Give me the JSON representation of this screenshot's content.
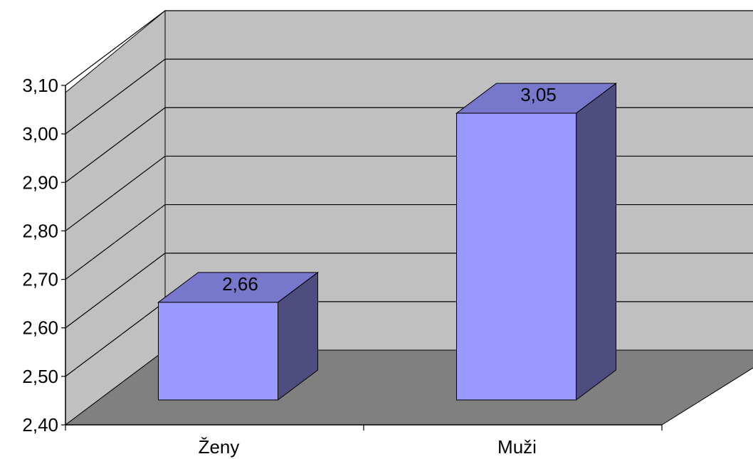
{
  "chart_data": {
    "type": "bar",
    "categories": [
      "Ženy",
      "Muži"
    ],
    "values": [
      2.66,
      3.05
    ],
    "data_labels": [
      "2,66",
      "3,05"
    ],
    "ylim": [
      2.4,
      3.1
    ],
    "yticks": [
      2.4,
      2.5,
      2.6,
      2.7,
      2.8,
      2.9,
      3.0,
      3.1
    ],
    "ytick_labels": [
      "2,40",
      "2,50",
      "2,60",
      "2,70",
      "2,80",
      "2,90",
      "3,00",
      "3,10"
    ],
    "title": "",
    "xlabel": "",
    "ylabel": "",
    "grid": true,
    "three_d": true,
    "colors": {
      "bar_front": "#9999FF",
      "bar_top": "#7777CC",
      "bar_side": "#4D4D80",
      "wall": "#C0C0C0",
      "floor": "#808080",
      "gridline": "#000000"
    }
  }
}
